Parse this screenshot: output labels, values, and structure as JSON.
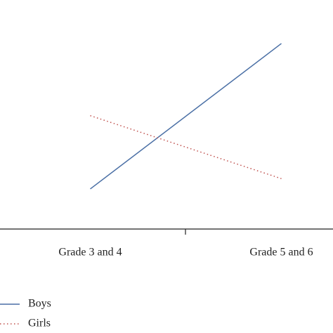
{
  "chart_data": {
    "type": "line",
    "categories": [
      "Grade 3 and 4",
      "Grade 5 and 6"
    ],
    "series": [
      {
        "name": "Boys",
        "color": "#4a6fa5",
        "dash": "solid",
        "values": [
          17.5,
          81
        ]
      },
      {
        "name": "Girls",
        "color": "#c0504d",
        "dash": "dotted",
        "values": [
          49.5,
          22
        ]
      }
    ],
    "ylim": [
      0,
      100
    ]
  }
}
